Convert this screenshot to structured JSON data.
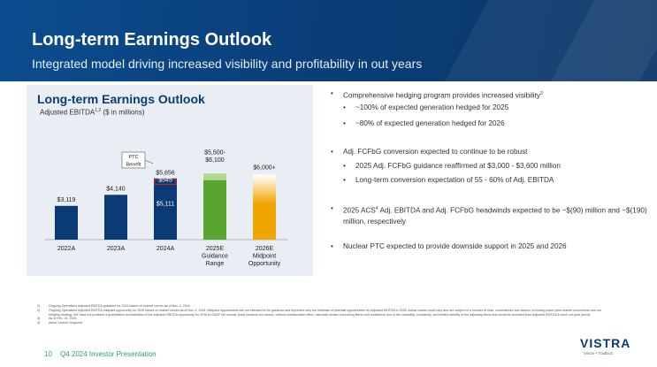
{
  "header": {
    "title": "Long-term Earnings Outlook",
    "subtitle": "Integrated model driving increased visibility and profitability in out years"
  },
  "chart_panel": {
    "title": "Long-term Earnings Outlook",
    "subtitle": "Adjusted EBITDA",
    "subtitle_sup": "1,2",
    "subtitle_unit": " ($ in millions)"
  },
  "chart_data": {
    "type": "bar",
    "categories": [
      "2022A",
      "2023A",
      "2024A",
      "2025E\nGuidance\nRange",
      "2026E\nMidpoint\nOpportunity"
    ],
    "bars": [
      {
        "label": "$3,119",
        "value": 3119,
        "color": "#0b3b74"
      },
      {
        "label": "$4,140",
        "value": 4140,
        "color": "#0b3b74"
      },
      {
        "label": "$5,656",
        "value": 5656,
        "color": "#0b3b74",
        "inner_label": "$5,111",
        "inner_value": 5111,
        "top_segment_label": "$545",
        "top_segment_value": 545
      },
      {
        "label": "$5,500-\n$6,100",
        "low": 5500,
        "high": 6100,
        "color": "#58a62e",
        "range_color": "#b7d98f"
      },
      {
        "label": "$6,000+",
        "value": 6000,
        "color": "#f0a500"
      }
    ],
    "callout": {
      "text": "PTC\nBenefit"
    },
    "colors": {
      "navy": "#0b3b74",
      "green": "#58a62e",
      "light_green": "#b7d98f",
      "gold": "#f0a500",
      "red": "#c62828"
    }
  },
  "bullets": [
    {
      "level": 1,
      "text": "Comprehensive hedging program provides increased visibility",
      "sup": "3"
    },
    {
      "level": 2,
      "text": "~100% of expected generation hedged for 2025"
    },
    {
      "level": 2,
      "text": "~80% of expected generation hedged for 2026"
    },
    {
      "level": 1,
      "text": "Adj. FCFbG conversion expected to continue to be robust"
    },
    {
      "level": 2,
      "text": "2025 Adj. FCFbG guidance reaffirmed at $3,000 - $3,600 million"
    },
    {
      "level": 2,
      "text": "Long-term conversion expectation of 55 - 60% of Adj. EBITDA"
    },
    {
      "level": 1,
      "text": "2025 ACS",
      "sup": "4",
      "text_after": " Adj. EBITDA and Adj. FCFbG headwinds expected to be ~$(90) million and ~$(190) million, respectively"
    },
    {
      "level": 1,
      "text": "Nuclear PTC expected to provide downside support in 2025 and 2026"
    }
  ],
  "footnotes": [
    {
      "n": "1)",
      "text": "Ongoing Operations Adjusted EBITDA guidance for 2025 based on market curves as of Nov. 4, 2024."
    },
    {
      "n": "2)",
      "text": "Ongoing Operations Adjusted EBITDA midpoint opportunity for 2026 based on market curves as of Nov. 4, 2024. Midpoint opportunities are not intended to be guidance and represent only our estimate of potential opportunities for Adjusted EBITDA in 2026. Actual results could vary and are subject to a number of risks, uncertainties and factors, including power price market movements and our hedging strategy. We have not provided a quantitative reconciliation of the Adjusted EBITDA opportunity for 2026 to GAAP net income (loss) because we cannot, without unreasonable effort, calculate certain reconciling items with confidence due to the variability, complexity, and limited visibility of the adjusting items that would be excluded from Adjusted EBITDA in such out-year period."
    },
    {
      "n": "3)",
      "text": "As of Feb. 24, 2025."
    },
    {
      "n": "4)",
      "text": "Asset Closure Segment."
    }
  ],
  "footer": {
    "page_number": "10",
    "presentation": "Q4 2024 Investor Presentation",
    "logo": "VISTRA",
    "tagline": "Vision • Tradition"
  }
}
